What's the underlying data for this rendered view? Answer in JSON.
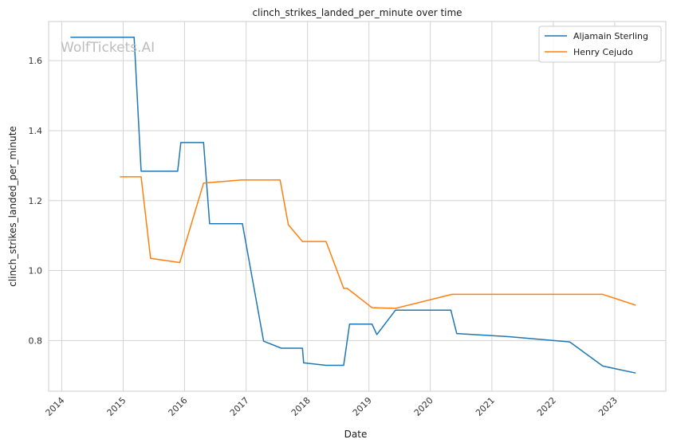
{
  "chart_data": {
    "type": "line",
    "title": "clinch_strikes_landed_per_minute over time",
    "xlabel": "Date",
    "ylabel": "clinch_strikes_landed_per_minute",
    "watermark": "WolfTickets.AI",
    "x_ticks": [
      "2014",
      "2015",
      "2016",
      "2017",
      "2018",
      "2019",
      "2020",
      "2021",
      "2022",
      "2023"
    ],
    "y_ticks": [
      "0.8",
      "1.0",
      "1.2",
      "1.4",
      "1.6"
    ],
    "xlim": [
      "2013-10-15",
      "2023-11-01"
    ],
    "ylim": [
      0.655,
      1.712
    ],
    "grid": true,
    "legend_position": "top-right",
    "colors": {
      "Aljamain Sterling": "#1f77b4",
      "Henry Cejudo": "#ff7f0e"
    },
    "series": [
      {
        "name": "Aljamain Sterling",
        "points": [
          [
            "2014-02-22",
            1.667
          ],
          [
            "2015-03-07",
            1.667
          ],
          [
            "2015-04-18",
            1.284
          ],
          [
            "2015-11-21",
            1.284
          ],
          [
            "2015-12-10",
            1.366
          ],
          [
            "2016-04-23",
            1.366
          ],
          [
            "2016-05-29",
            1.134
          ],
          [
            "2016-12-10",
            1.134
          ],
          [
            "2017-04-15",
            0.798
          ],
          [
            "2017-07-29",
            0.778
          ],
          [
            "2017-12-02",
            0.778
          ],
          [
            "2017-12-09",
            0.736
          ],
          [
            "2018-04-21",
            0.729
          ],
          [
            "2018-08-04",
            0.729
          ],
          [
            "2018-09-08",
            0.847
          ],
          [
            "2019-01-19",
            0.847
          ],
          [
            "2019-02-17",
            0.817
          ],
          [
            "2019-06-08",
            0.887
          ],
          [
            "2020-05-02",
            0.887
          ],
          [
            "2020-06-06",
            0.82
          ],
          [
            "2021-04-10",
            0.811
          ],
          [
            "2022-04-09",
            0.796
          ],
          [
            "2022-10-22",
            0.727
          ],
          [
            "2023-05-06",
            0.707
          ]
        ]
      },
      {
        "name": "Henry Cejudo",
        "points": [
          [
            "2014-12-13",
            1.268
          ],
          [
            "2015-04-18",
            1.268
          ],
          [
            "2015-06-13",
            1.035
          ],
          [
            "2015-12-04",
            1.023
          ],
          [
            "2016-04-23",
            1.25
          ],
          [
            "2016-12-03",
            1.259
          ],
          [
            "2017-07-22",
            1.259
          ],
          [
            "2017-09-09",
            1.131
          ],
          [
            "2017-12-02",
            1.083
          ],
          [
            "2018-04-21",
            1.083
          ],
          [
            "2018-08-04",
            0.949
          ],
          [
            "2018-08-25",
            0.949
          ],
          [
            "2019-01-19",
            0.894
          ],
          [
            "2019-06-08",
            0.892
          ],
          [
            "2020-05-09",
            0.932
          ],
          [
            "2022-10-22",
            0.932
          ],
          [
            "2023-05-06",
            0.901
          ]
        ]
      }
    ]
  }
}
